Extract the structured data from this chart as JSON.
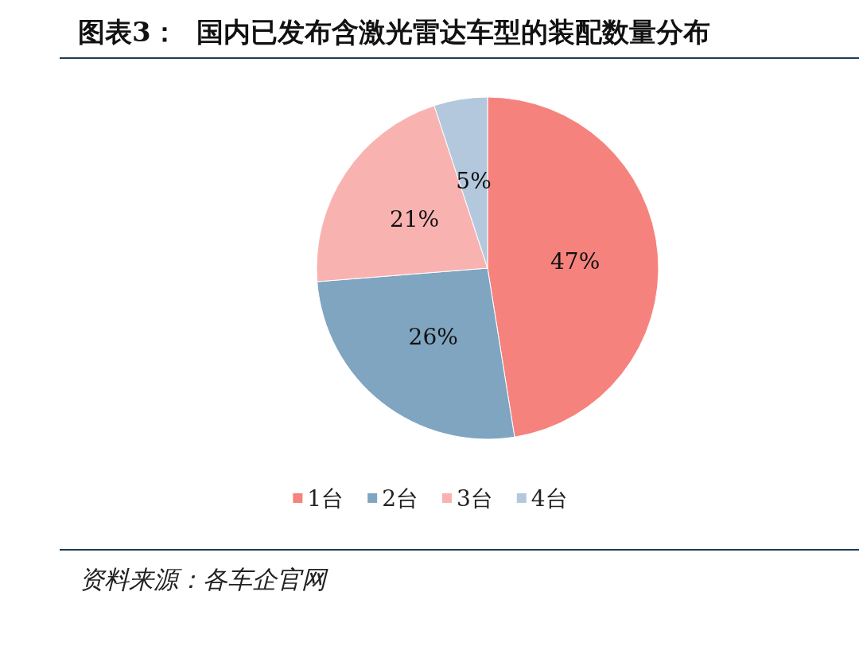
{
  "chart_data": {
    "type": "pie",
    "title": "图表3：  国内已发布含激光雷达车型的装配数量分布",
    "categories": [
      "1台",
      "2台",
      "3台",
      "4台"
    ],
    "values": [
      47,
      26,
      21,
      5
    ],
    "value_labels": [
      "47%",
      "26%",
      "21%",
      "5%"
    ],
    "colors": [
      "#f5827d",
      "#7fa5c1",
      "#f8b3b1",
      "#b3c8dc"
    ],
    "legend": "bottom",
    "annotations": [
      "资料来源：各车企官网"
    ]
  }
}
